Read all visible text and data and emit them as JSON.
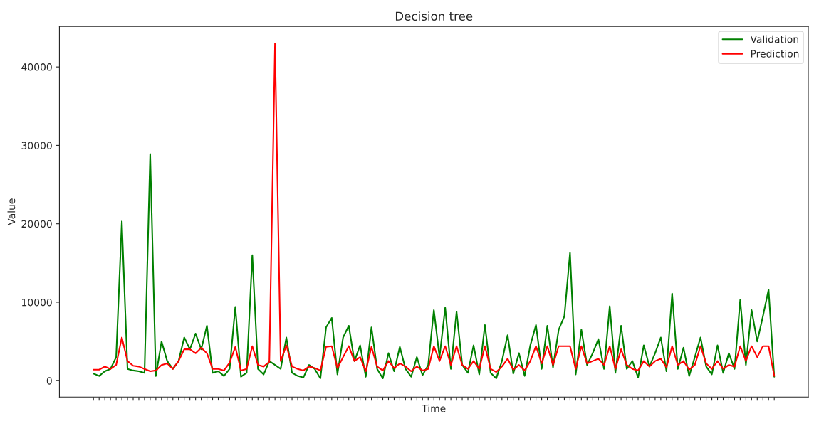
{
  "chart_data": {
    "type": "line",
    "title": "Decision tree",
    "xlabel": "Time",
    "ylabel": "Value",
    "categories": [
      null,
      null,
      null,
      null,
      null,
      null,
      null,
      null,
      null,
      null,
      null,
      null,
      null,
      null,
      null,
      null,
      null,
      null,
      null,
      null,
      null,
      null,
      null,
      null,
      null,
      null,
      null,
      null,
      null,
      null,
      null,
      null,
      null,
      null,
      null,
      null,
      null,
      null,
      null,
      null,
      null,
      null,
      null,
      null,
      null,
      null,
      null,
      null,
      null,
      null,
      null,
      null,
      null,
      null,
      null,
      null,
      null,
      null,
      null,
      null,
      null,
      null,
      null,
      null,
      null,
      null,
      null,
      null,
      null,
      null,
      null,
      null,
      null,
      null,
      null,
      null,
      null,
      null,
      null,
      null,
      null,
      null,
      null,
      null,
      null,
      null,
      null,
      null,
      null,
      null,
      null,
      null,
      null,
      null,
      null,
      null,
      null,
      null,
      null,
      null,
      null,
      null,
      null,
      null,
      null,
      null,
      null,
      null,
      null,
      null,
      null,
      null,
      null,
      null,
      null,
      null,
      null,
      null,
      null,
      null,
      null
    ],
    "series": [
      {
        "name": "Validation",
        "color": "#008000",
        "values": [
          900,
          600,
          1200,
          1500,
          3000,
          20300,
          1500,
          1300,
          1200,
          1000,
          28900,
          600,
          5000,
          2500,
          1500,
          2500,
          5500,
          4000,
          6000,
          4000,
          7000,
          1000,
          1200,
          600,
          1500,
          9400,
          500,
          1000,
          16000,
          1500,
          800,
          2500,
          2000,
          1500,
          5500,
          1000,
          600,
          400,
          2000,
          1500,
          300,
          6800,
          8000,
          800,
          5500,
          7000,
          2500,
          4500,
          500,
          6800,
          1500,
          300,
          3500,
          1200,
          4300,
          1500,
          500,
          3000,
          700,
          2000,
          9000,
          3000,
          9300,
          1500,
          8800,
          2000,
          1000,
          4500,
          800,
          7100,
          1000,
          300,
          2500,
          5800,
          900,
          3500,
          600,
          4500,
          7100,
          1500,
          7000,
          1700,
          6500,
          8200,
          16300,
          800,
          6500,
          2000,
          3500,
          5300,
          1500,
          9500,
          1000,
          7000,
          1500,
          2500,
          400,
          4500,
          1800,
          3500,
          5500,
          1200,
          11100,
          1500,
          4200,
          600,
          3000,
          5500,
          1800,
          800,
          4500,
          1000,
          3500,
          1500,
          10300,
          2000,
          9000,
          5000,
          8200,
          11600,
          500
        ]
      },
      {
        "name": "Prediction",
        "color": "#ff0000",
        "values": [
          1400,
          1400,
          1800,
          1500,
          2000,
          5500,
          2500,
          1900,
          1800,
          1500,
          1200,
          1300,
          2000,
          2200,
          1500,
          2500,
          4000,
          4000,
          3500,
          4200,
          3500,
          1500,
          1500,
          1300,
          2300,
          4300,
          1300,
          1500,
          4400,
          2000,
          1800,
          2400,
          43000,
          2500,
          4500,
          1800,
          1500,
          1300,
          1800,
          1600,
          1300,
          4300,
          4400,
          1600,
          3000,
          4400,
          2500,
          3000,
          1200,
          4300,
          1800,
          1300,
          2500,
          1600,
          2200,
          1800,
          1200,
          1800,
          1300,
          1500,
          4400,
          2500,
          4400,
          2000,
          4400,
          2000,
          1500,
          2500,
          1500,
          4400,
          1500,
          1100,
          1800,
          2800,
          1400,
          2000,
          1300,
          2500,
          4400,
          2200,
          4400,
          2000,
          4400,
          4400,
          4400,
          1500,
          4400,
          2200,
          2500,
          2800,
          2000,
          4400,
          1500,
          4000,
          2000,
          1500,
          1300,
          2500,
          1800,
          2500,
          2800,
          1700,
          4400,
          2000,
          2500,
          1400,
          2000,
          4400,
          2200,
          1500,
          2500,
          1500,
          2000,
          1800,
          4400,
          2500,
          4400,
          3000,
          4400,
          4400,
          600
        ]
      }
    ],
    "ylim": [
      -2090,
      45170
    ],
    "yticks": [
      0,
      10000,
      20000,
      30000,
      40000
    ],
    "tick_labels": "y",
    "legend": "top right",
    "grid": false
  }
}
